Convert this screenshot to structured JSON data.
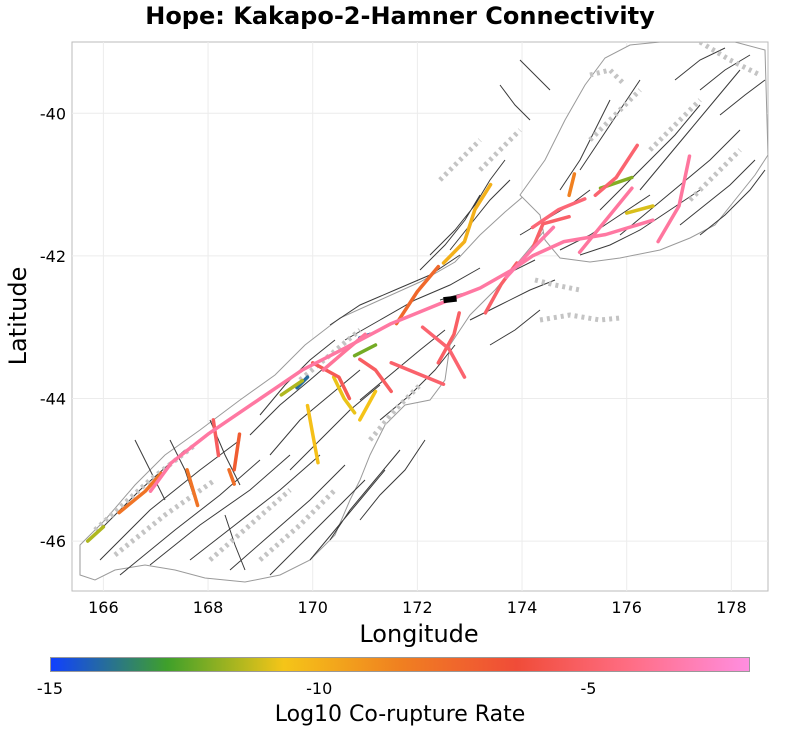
{
  "chart_data": {
    "type": "map",
    "title": "Hope: Kakapo-2-Hamner Connectivity",
    "xlabel": "Longitude",
    "ylabel": "Latitude",
    "xlim": [
      165.4,
      178.7
    ],
    "ylim": [
      -46.7,
      -39.0
    ],
    "xticks": [
      166,
      168,
      170,
      172,
      174,
      176,
      178
    ],
    "yticks": [
      -40,
      -42,
      -44,
      -46
    ],
    "grid": true,
    "colorbar": {
      "label": "Log10 Co-rupture Rate",
      "range": [
        -15,
        -2
      ],
      "ticks": [
        -15,
        -10,
        -5
      ],
      "colors": [
        "#1040ff",
        "#3fa02a",
        "#f5c518",
        "#f08020",
        "#f04c38",
        "#ff6e86",
        "#ff8ee0"
      ]
    },
    "source_fault": {
      "name": "Hope: Kakapo-2-Hamner",
      "color": "#000000",
      "path": [
        [
          172.5,
          -42.62
        ],
        [
          172.75,
          -42.6
        ]
      ]
    },
    "ruptures": [
      {
        "rate": -3.5,
        "path": [
          [
            166.9,
            -45.3
          ],
          [
            167.3,
            -44.9
          ],
          [
            168.0,
            -44.5
          ],
          [
            169.0,
            -44.0
          ],
          [
            169.8,
            -43.6
          ],
          [
            170.6,
            -43.3
          ],
          [
            171.5,
            -42.95
          ],
          [
            172.5,
            -42.65
          ],
          [
            173.2,
            -42.45
          ],
          [
            173.8,
            -42.2
          ],
          [
            174.2,
            -42.0
          ],
          [
            174.8,
            -41.8
          ],
          [
            175.6,
            -41.7
          ],
          [
            176.5,
            -41.5
          ]
        ]
      },
      {
        "rate": -3.4,
        "path": [
          [
            173.7,
            -42.3
          ],
          [
            174.2,
            -41.9
          ],
          [
            174.6,
            -41.6
          ]
        ]
      },
      {
        "rate": -3.6,
        "path": [
          [
            175.1,
            -41.95
          ],
          [
            175.6,
            -41.5
          ],
          [
            176.1,
            -41.05
          ]
        ]
      },
      {
        "rate": -3.6,
        "path": [
          [
            176.6,
            -41.8
          ],
          [
            177.0,
            -41.3
          ],
          [
            177.2,
            -40.6
          ]
        ]
      },
      {
        "rate": -3.7,
        "path": [
          [
            171.0,
            -43.1
          ],
          [
            170.6,
            -43.35
          ],
          [
            170.2,
            -43.6
          ]
        ]
      },
      {
        "rate": -4.6,
        "path": [
          [
            174.2,
            -41.6
          ],
          [
            174.7,
            -41.35
          ],
          [
            175.2,
            -41.2
          ]
        ]
      },
      {
        "rate": -4.8,
        "path": [
          [
            175.4,
            -41.15
          ],
          [
            175.8,
            -40.9
          ],
          [
            176.2,
            -40.45
          ]
        ]
      },
      {
        "rate": -4.8,
        "path": [
          [
            172.1,
            -43.0
          ],
          [
            172.6,
            -43.3
          ],
          [
            172.9,
            -43.7
          ]
        ]
      },
      {
        "rate": -4.9,
        "path": [
          [
            171.5,
            -43.5
          ],
          [
            172.0,
            -43.65
          ],
          [
            172.5,
            -43.8
          ]
        ]
      },
      {
        "rate": -5.0,
        "path": [
          [
            173.3,
            -42.8
          ],
          [
            173.6,
            -42.4
          ],
          [
            173.9,
            -42.1
          ]
        ]
      },
      {
        "rate": -5.0,
        "path": [
          [
            174.2,
            -41.9
          ],
          [
            174.4,
            -41.55
          ],
          [
            174.9,
            -41.45
          ]
        ]
      },
      {
        "rate": -5.1,
        "path": [
          [
            172.8,
            -42.8
          ],
          [
            172.7,
            -43.1
          ],
          [
            172.4,
            -43.5
          ]
        ]
      },
      {
        "rate": -5.2,
        "path": [
          [
            170.9,
            -43.45
          ],
          [
            171.2,
            -43.6
          ],
          [
            171.5,
            -43.9
          ]
        ]
      },
      {
        "rate": -5.5,
        "path": [
          [
            170.0,
            -43.5
          ],
          [
            170.5,
            -43.7
          ],
          [
            170.7,
            -44.0
          ]
        ]
      },
      {
        "rate": -5.3,
        "path": [
          [
            168.1,
            -44.3
          ],
          [
            168.2,
            -44.8
          ]
        ]
      },
      {
        "rate": -7.0,
        "path": [
          [
            168.6,
            -44.5
          ],
          [
            168.5,
            -45.0
          ]
        ]
      },
      {
        "rate": -7.5,
        "path": [
          [
            171.6,
            -42.95
          ],
          [
            172.0,
            -42.5
          ],
          [
            172.4,
            -42.15
          ]
        ]
      },
      {
        "rate": -8.0,
        "path": [
          [
            167.6,
            -45.0
          ],
          [
            167.8,
            -45.5
          ]
        ]
      },
      {
        "rate": -7.8,
        "path": [
          [
            168.4,
            -45.0
          ],
          [
            168.5,
            -45.2
          ]
        ]
      },
      {
        "rate": -8.0,
        "path": [
          [
            166.3,
            -45.6
          ],
          [
            166.8,
            -45.3
          ],
          [
            167.1,
            -45.05
          ]
        ]
      },
      {
        "rate": -8.5,
        "path": [
          [
            174.9,
            -41.15
          ],
          [
            175.0,
            -40.85
          ]
        ]
      },
      {
        "rate": -10.0,
        "path": [
          [
            172.5,
            -42.1
          ],
          [
            172.9,
            -41.8
          ],
          [
            173.1,
            -41.35
          ],
          [
            173.4,
            -41.0
          ]
        ]
      },
      {
        "rate": -10.5,
        "path": [
          [
            169.9,
            -44.1
          ],
          [
            170.0,
            -44.5
          ],
          [
            170.1,
            -44.9
          ]
        ]
      },
      {
        "rate": -10.8,
        "path": [
          [
            170.4,
            -43.7
          ],
          [
            170.6,
            -44.0
          ],
          [
            170.8,
            -44.2
          ]
        ]
      },
      {
        "rate": -10.6,
        "path": [
          [
            171.2,
            -43.9
          ],
          [
            170.9,
            -44.3
          ]
        ]
      },
      {
        "rate": -11.0,
        "path": [
          [
            176.0,
            -41.4
          ],
          [
            176.5,
            -41.3
          ]
        ]
      },
      {
        "rate": -11.5,
        "path": [
          [
            166.0,
            -45.8
          ],
          [
            165.7,
            -46.0
          ]
        ]
      },
      {
        "rate": -11.5,
        "path": [
          [
            169.4,
            -43.95
          ],
          [
            169.8,
            -43.75
          ]
        ]
      },
      {
        "rate": -12.0,
        "path": [
          [
            175.5,
            -41.05
          ],
          [
            176.1,
            -40.9
          ]
        ]
      },
      {
        "rate": -12.2,
        "path": [
          [
            170.8,
            -43.4
          ],
          [
            171.2,
            -43.25
          ]
        ]
      },
      {
        "rate": -14.0,
        "path": [
          [
            169.7,
            -43.85
          ],
          [
            169.9,
            -43.7
          ]
        ]
      },
      {
        "rate": -14.2,
        "path": [
          [
            170.9,
            -43.15
          ],
          [
            171.1,
            -43.1
          ]
        ]
      }
    ]
  }
}
